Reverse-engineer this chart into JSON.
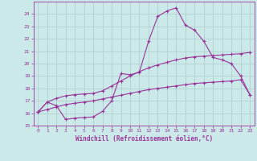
{
  "xlabel": "Windchill (Refroidissement éolien,°C)",
  "background_color": "#cbe9e9",
  "grid_color": "#aacccc",
  "line_color": "#993399",
  "xlim": [
    -0.5,
    23.5
  ],
  "ylim": [
    15,
    25
  ],
  "xticks": [
    0,
    1,
    2,
    3,
    4,
    5,
    6,
    7,
    8,
    9,
    10,
    11,
    12,
    13,
    14,
    15,
    16,
    17,
    18,
    19,
    20,
    21,
    22,
    23
  ],
  "yticks": [
    15,
    16,
    17,
    18,
    19,
    20,
    21,
    22,
    23,
    24
  ],
  "line1_x": [
    0,
    1,
    2,
    3,
    4,
    5,
    6,
    7,
    8,
    9,
    10,
    11,
    12,
    13,
    14,
    15,
    16,
    17,
    18,
    19,
    20,
    21,
    22,
    23
  ],
  "line1_y": [
    16.1,
    16.9,
    16.6,
    15.5,
    15.6,
    15.65,
    15.7,
    16.15,
    17.0,
    19.2,
    19.1,
    19.3,
    21.8,
    23.8,
    24.25,
    24.5,
    23.1,
    22.7,
    21.8,
    20.5,
    20.3,
    20.0,
    19.0,
    17.5
  ],
  "line2_x": [
    0,
    1,
    2,
    3,
    4,
    5,
    6,
    7,
    8,
    9,
    10,
    11,
    12,
    13,
    14,
    15,
    16,
    17,
    18,
    19,
    20,
    21,
    22,
    23
  ],
  "line2_y": [
    16.1,
    16.9,
    17.2,
    17.4,
    17.5,
    17.55,
    17.6,
    17.8,
    18.2,
    18.6,
    19.0,
    19.35,
    19.65,
    19.9,
    20.1,
    20.3,
    20.45,
    20.55,
    20.6,
    20.65,
    20.7,
    20.75,
    20.8,
    20.9
  ],
  "line3_x": [
    0,
    1,
    2,
    3,
    4,
    5,
    6,
    7,
    8,
    9,
    10,
    11,
    12,
    13,
    14,
    15,
    16,
    17,
    18,
    19,
    20,
    21,
    22,
    23
  ],
  "line3_y": [
    16.1,
    16.3,
    16.5,
    16.7,
    16.8,
    16.9,
    17.0,
    17.15,
    17.3,
    17.45,
    17.6,
    17.75,
    17.9,
    18.0,
    18.1,
    18.2,
    18.3,
    18.4,
    18.45,
    18.5,
    18.55,
    18.6,
    18.7,
    17.5
  ]
}
